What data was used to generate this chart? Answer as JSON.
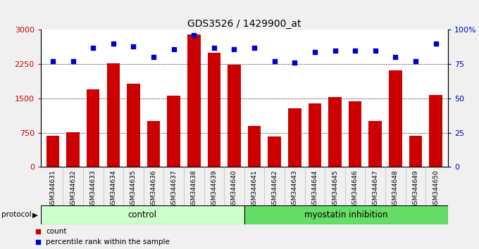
{
  "title": "GDS3526 / 1429900_at",
  "categories": [
    "GSM344631",
    "GSM344632",
    "GSM344633",
    "GSM344634",
    "GSM344635",
    "GSM344636",
    "GSM344637",
    "GSM344638",
    "GSM344639",
    "GSM344640",
    "GSM344641",
    "GSM344642",
    "GSM344643",
    "GSM344644",
    "GSM344645",
    "GSM344646",
    "GSM344647",
    "GSM344648",
    "GSM344649",
    "GSM344650"
  ],
  "bar_values": [
    680,
    760,
    1700,
    2270,
    1820,
    1000,
    1560,
    2900,
    2500,
    2240,
    900,
    660,
    1280,
    1390,
    1530,
    1430,
    1000,
    2110,
    680,
    1580
  ],
  "dot_values_pct": [
    77,
    77,
    87,
    90,
    88,
    80,
    86,
    96,
    87,
    86,
    87,
    77,
    76,
    84,
    85,
    85,
    85,
    80,
    77,
    90
  ],
  "bar_color": "#cc0000",
  "dot_color": "#0000cc",
  "ylim_left": [
    0,
    3000
  ],
  "ylim_right": [
    0,
    100
  ],
  "yticks_left": [
    0,
    750,
    1500,
    2250,
    3000
  ],
  "ytick_labels_left": [
    "0",
    "750",
    "1500",
    "2250",
    "3000"
  ],
  "yticks_right": [
    0,
    25,
    50,
    75,
    100
  ],
  "ytick_labels_right": [
    "0",
    "25",
    "50",
    "75",
    "100%"
  ],
  "control_count": 10,
  "myostatin_count": 10,
  "group_labels": [
    "control",
    "myostatin inhibition"
  ],
  "group_colors": [
    "#ccffcc",
    "#66dd66"
  ],
  "protocol_label": "protocol",
  "legend_items": [
    "count",
    "percentile rank within the sample"
  ],
  "legend_colors": [
    "#cc0000",
    "#0000cc"
  ],
  "background_color": "#f0f0f0",
  "plot_bg_color": "#ffffff",
  "xtick_bg_color": "#d0d0d0",
  "title_fontsize": 10,
  "tick_label_fontsize": 6.5,
  "bar_width": 0.65
}
